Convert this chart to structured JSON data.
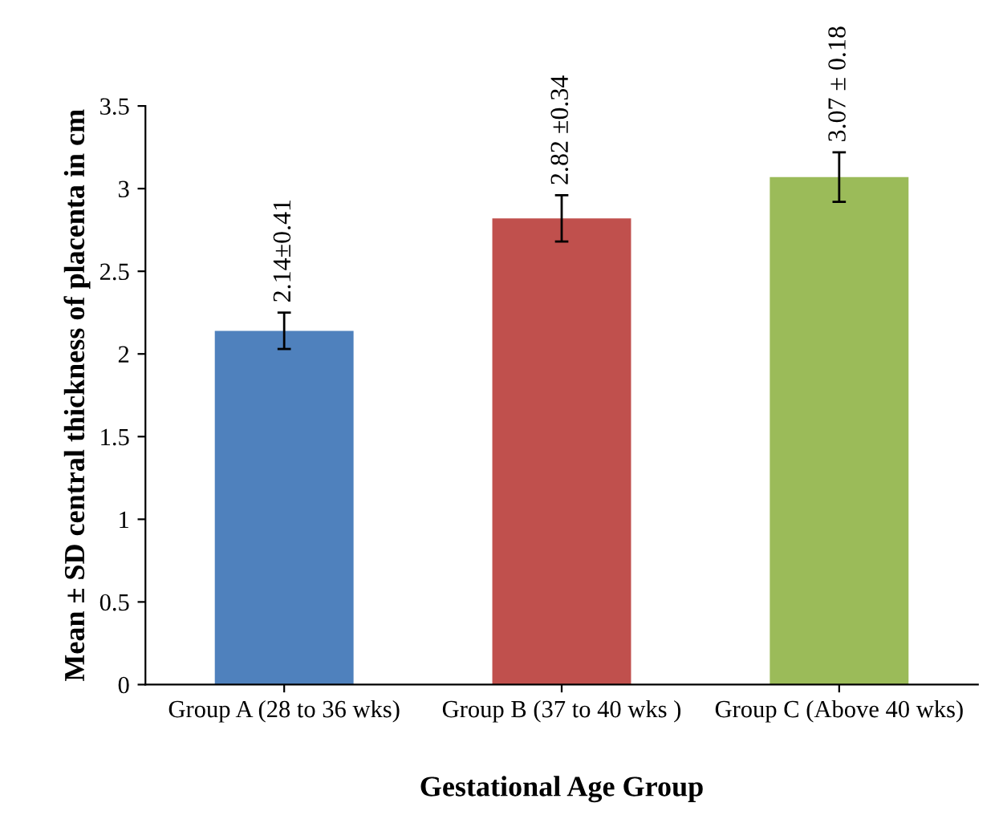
{
  "chart_data": {
    "type": "bar",
    "xlabel": "Gestational Age Group",
    "ylabel": "Mean ± SD central thickness of placenta in cm",
    "categories": [
      "Group A (28 to 36 wks)",
      "Group B (37 to 40 wks )",
      "Group C (Above 40 wks)"
    ],
    "values": [
      2.14,
      2.82,
      3.07
    ],
    "colors": [
      "#4f81bd",
      "#c0504d",
      "#9bbb59"
    ],
    "errors": [
      0.11,
      0.14,
      0.15
    ],
    "value_labels": [
      "2.14±0.41",
      "2.82 ±0.34",
      "3.07 ± 0.18"
    ],
    "ylim": [
      0,
      3.5
    ],
    "yticks": [
      0,
      0.5,
      1,
      1.5,
      2,
      2.5,
      3,
      3.5
    ],
    "grid": false,
    "legend": false
  }
}
